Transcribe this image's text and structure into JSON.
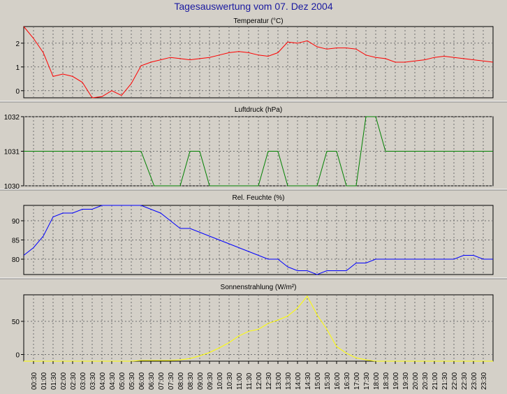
{
  "page": {
    "title": "Tagesauswertung vom 07. Dez 2004"
  },
  "time_labels": [
    "00:30",
    "01:00",
    "01:30",
    "02:00",
    "02:30",
    "03:00",
    "03:30",
    "04:00",
    "04:30",
    "05:00",
    "05:30",
    "06:00",
    "06:30",
    "07:00",
    "07:30",
    "08:00",
    "08:30",
    "09:00",
    "09:30",
    "10:00",
    "10:30",
    "11:00",
    "11:30",
    "12:00",
    "12:30",
    "13:00",
    "13:30",
    "14:00",
    "14:30",
    "15:00",
    "15:30",
    "16:00",
    "16:30",
    "17:00",
    "17:30",
    "18:00",
    "18:30",
    "19:00",
    "19:30",
    "20:00",
    "20:30",
    "21:00",
    "21:30",
    "22:00",
    "22:30",
    "23:00",
    "23:30"
  ],
  "chart_data": [
    {
      "type": "line",
      "title": "Temperatur (°C)",
      "color": "#ff0000",
      "ylim": [
        -0.3,
        2.7
      ],
      "yticks": [
        0,
        1,
        2
      ],
      "x": [
        "00:00",
        "00:30",
        "01:00",
        "01:30",
        "02:00",
        "02:30",
        "03:00",
        "03:30",
        "04:00",
        "04:30",
        "05:00",
        "05:30",
        "06:00",
        "06:30",
        "07:00",
        "07:30",
        "08:00",
        "08:30",
        "09:00",
        "09:30",
        "10:00",
        "10:30",
        "11:00",
        "11:30",
        "12:00",
        "12:30",
        "13:00",
        "13:30",
        "14:00",
        "14:30",
        "15:00",
        "15:30",
        "16:00",
        "16:30",
        "17:00",
        "17:30",
        "18:00",
        "18:30",
        "19:00",
        "19:30",
        "20:00",
        "20:30",
        "21:00",
        "21:30",
        "22:00",
        "22:30",
        "23:00",
        "23:30",
        "24:00"
      ],
      "values": [
        2.7,
        2.2,
        1.6,
        0.6,
        0.7,
        0.6,
        0.35,
        -0.3,
        -0.25,
        0.0,
        -0.2,
        0.3,
        1.05,
        1.2,
        1.3,
        1.4,
        1.35,
        1.3,
        1.35,
        1.4,
        1.5,
        1.6,
        1.65,
        1.6,
        1.5,
        1.45,
        1.6,
        2.05,
        2.0,
        2.1,
        1.85,
        1.75,
        1.8,
        1.8,
        1.75,
        1.5,
        1.4,
        1.35,
        1.2,
        1.2,
        1.25,
        1.3,
        1.4,
        1.45,
        1.4,
        1.35,
        1.3,
        1.25,
        1.2
      ]
    },
    {
      "type": "line",
      "title": "Luftdruck (hPa)",
      "color": "#008000",
      "ylim": [
        1030,
        1032
      ],
      "yticks": [
        1030,
        1031,
        1032
      ],
      "x": [
        "00:00",
        "06:00",
        "06:40",
        "08:00",
        "08:30",
        "09:00",
        "09:30",
        "12:00",
        "12:30",
        "13:00",
        "13:30",
        "15:00",
        "15:30",
        "16:00",
        "16:30",
        "17:00",
        "17:30",
        "18:00",
        "18:30",
        "24:00"
      ],
      "values": [
        1031,
        1031,
        1030,
        1030,
        1031,
        1031,
        1030,
        1030,
        1031,
        1031,
        1030,
        1030,
        1031,
        1031,
        1030,
        1030,
        1032,
        1032,
        1031,
        1031
      ],
      "_xnote": "piecewise"
    },
    {
      "type": "line",
      "title": "Rel. Feuchte (%)",
      "color": "#0000ff",
      "ylim": [
        76,
        94
      ],
      "yticks": [
        80,
        85,
        90
      ],
      "x": [
        "00:00",
        "00:30",
        "01:00",
        "01:30",
        "02:00",
        "02:30",
        "03:00",
        "03:30",
        "04:00",
        "04:30",
        "05:00",
        "05:30",
        "06:00",
        "06:30",
        "07:00",
        "07:30",
        "08:00",
        "08:30",
        "09:00",
        "09:30",
        "10:00",
        "10:30",
        "11:00",
        "11:30",
        "12:00",
        "12:30",
        "13:00",
        "13:30",
        "14:00",
        "14:30",
        "15:00",
        "15:30",
        "16:00",
        "16:30",
        "17:00",
        "17:30",
        "18:00",
        "18:30",
        "19:00",
        "19:30",
        "20:00",
        "20:30",
        "21:00",
        "21:30",
        "22:00",
        "22:30",
        "23:00",
        "23:30",
        "24:00"
      ],
      "values": [
        81,
        83,
        86,
        91,
        92,
        92,
        93,
        93,
        94,
        94,
        94,
        94,
        94,
        93,
        92,
        90,
        88,
        88,
        87,
        86,
        85,
        84,
        83,
        82,
        81,
        80,
        80,
        78,
        77,
        77,
        76,
        77,
        77,
        77,
        79,
        79,
        80,
        80,
        80,
        80,
        80,
        80,
        80,
        80,
        80,
        81,
        81,
        80,
        80
      ]
    },
    {
      "type": "line",
      "title": "Sonnenstrahlung (W/m²)",
      "color": "#ffff00",
      "ylim": [
        -10,
        90
      ],
      "yticks": [
        0,
        50
      ],
      "x": [
        "00:00",
        "00:30",
        "01:00",
        "01:30",
        "02:00",
        "02:30",
        "03:00",
        "03:30",
        "04:00",
        "04:30",
        "05:00",
        "05:30",
        "06:00",
        "06:30",
        "07:00",
        "07:30",
        "08:00",
        "08:30",
        "09:00",
        "09:30",
        "10:00",
        "10:30",
        "11:00",
        "11:30",
        "12:00",
        "12:30",
        "13:00",
        "13:30",
        "14:00",
        "14:30",
        "15:00",
        "15:30",
        "16:00",
        "16:30",
        "17:00",
        "17:30",
        "18:00",
        "18:30",
        "19:00",
        "19:30",
        "20:00",
        "20:30",
        "21:00",
        "21:30",
        "22:00",
        "22:30",
        "23:00",
        "23:30",
        "24:00"
      ],
      "values": [
        -10,
        -10,
        -10,
        -10,
        -10,
        -10,
        -10,
        -10,
        -10,
        -10,
        -10,
        -10,
        -9,
        -9,
        -9,
        -9,
        -8,
        -6,
        -2,
        3,
        10,
        18,
        28,
        35,
        38,
        47,
        52,
        58,
        70,
        88,
        60,
        38,
        12,
        2,
        -5,
        -8,
        -10,
        -10,
        -10,
        -10,
        -10,
        -10,
        -10,
        -10,
        -10,
        -10,
        -10,
        -10,
        -10
      ]
    }
  ]
}
